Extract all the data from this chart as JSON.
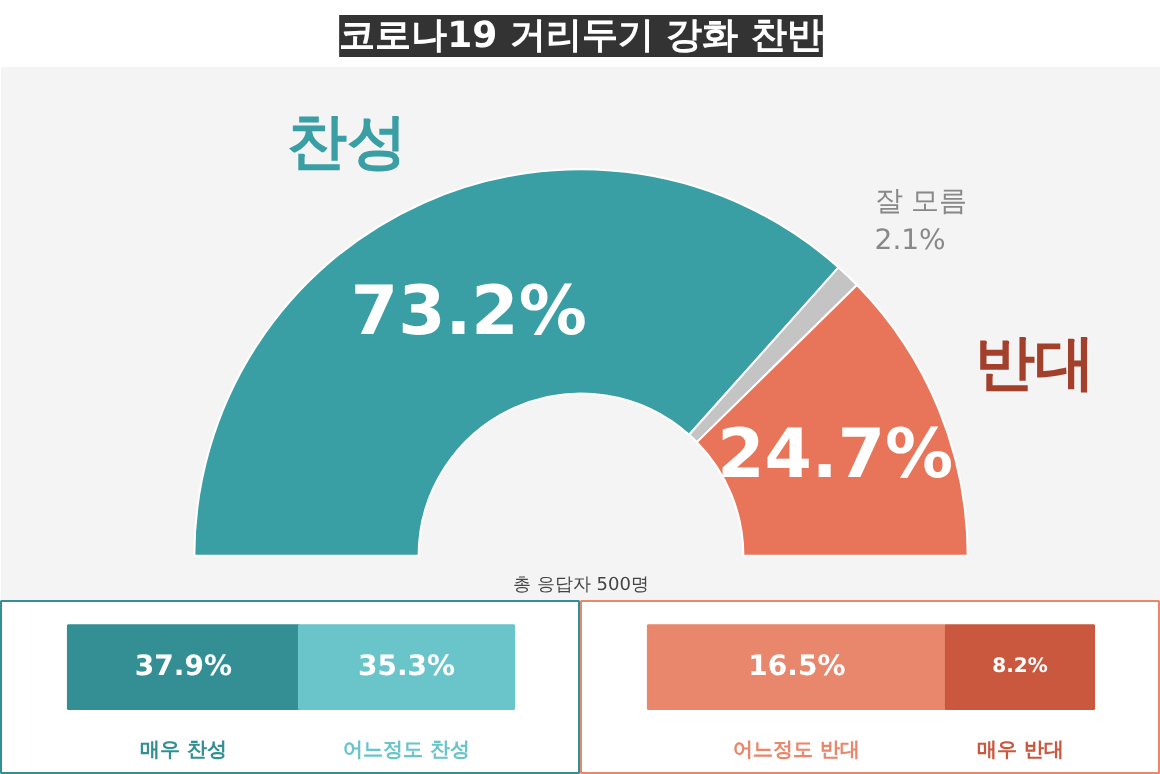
{
  "chart_data": [
    {
      "type": "donut",
      "title": "코로나19 거리두기 강화 찬반",
      "categories": [
        "찬성",
        "잘 모름",
        "반대"
      ],
      "values": [
        73.2,
        2.1,
        24.7
      ],
      "colors": [
        "#3a9ea5",
        "#c4c4c4",
        "#e8745a"
      ],
      "value_labels": [
        "73.2%",
        "2.1%",
        "24.7%"
      ],
      "annotations": [
        "총 응답자 500명"
      ]
    },
    {
      "type": "bar",
      "orientation": "horizontal",
      "stacked": true,
      "categories": [
        null
      ],
      "series": [
        {
          "name": "매우 찬성",
          "color": "#338f94",
          "values": [
            37.9
          ],
          "value_labels": [
            "37.9%"
          ]
        },
        {
          "name": "어느정도 찬성",
          "color": "#6ac5cb",
          "values": [
            35.3
          ],
          "value_labels": [
            "35.3%"
          ]
        }
      ]
    },
    {
      "type": "bar",
      "orientation": "horizontal",
      "stacked": true,
      "categories": [
        null
      ],
      "series": [
        {
          "name": "어느정도 반대",
          "color": "#e8876b",
          "values": [
            16.5
          ],
          "value_labels": [
            "16.5%"
          ]
        },
        {
          "name": "매우 반대",
          "color": "#c9583f",
          "values": [
            8.2
          ],
          "value_labels": [
            "8.2%"
          ]
        }
      ]
    }
  ]
}
